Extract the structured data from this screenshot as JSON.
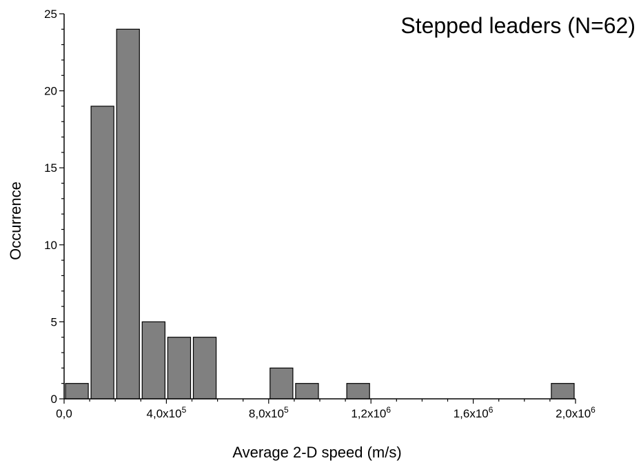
{
  "chart_data": {
    "type": "bar",
    "title": "Stepped leaders (N=62)",
    "xlabel": "Average 2-D speed (m/s)",
    "ylabel": "Occurrence",
    "xlim": [
      0,
      2000000
    ],
    "ylim": [
      0,
      25
    ],
    "bin_width": 100000,
    "bar_color": "#808080",
    "bins": [
      {
        "x_start": 0,
        "x_end": 100000,
        "count": 1
      },
      {
        "x_start": 100000,
        "x_end": 200000,
        "count": 19
      },
      {
        "x_start": 200000,
        "x_end": 300000,
        "count": 24
      },
      {
        "x_start": 300000,
        "x_end": 400000,
        "count": 5
      },
      {
        "x_start": 400000,
        "x_end": 500000,
        "count": 4
      },
      {
        "x_start": 500000,
        "x_end": 600000,
        "count": 4
      },
      {
        "x_start": 800000,
        "x_end": 900000,
        "count": 2
      },
      {
        "x_start": 900000,
        "x_end": 1000000,
        "count": 1
      },
      {
        "x_start": 1100000,
        "x_end": 1200000,
        "count": 1
      },
      {
        "x_start": 1900000,
        "x_end": 2000000,
        "count": 1
      }
    ],
    "x_ticks": [
      {
        "value": 0,
        "mantissa": "0,0",
        "exp": ""
      },
      {
        "value": 400000,
        "mantissa": "4,0x10",
        "exp": "5"
      },
      {
        "value": 800000,
        "mantissa": "8,0x10",
        "exp": "5"
      },
      {
        "value": 1200000,
        "mantissa": "1,2x10",
        "exp": "6"
      },
      {
        "value": 1600000,
        "mantissa": "1,6x10",
        "exp": "6"
      },
      {
        "value": 2000000,
        "mantissa": "2,0x10",
        "exp": "6"
      }
    ],
    "y_ticks": [
      0,
      5,
      10,
      15,
      20,
      25
    ]
  }
}
